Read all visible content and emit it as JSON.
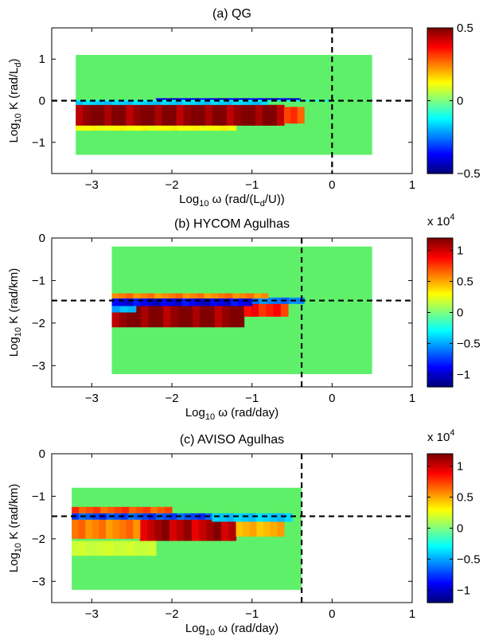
{
  "figure": {
    "colors": {
      "background": "#ffffff",
      "axes": "#000000",
      "field_zero": "#5ff06a",
      "colormap": [
        "#000080",
        "#0000ff",
        "#0080ff",
        "#00ffff",
        "#80ff80",
        "#ffff00",
        "#ff8000",
        "#ff0000",
        "#800000"
      ]
    }
  },
  "chart_data": [
    {
      "type": "heatmap",
      "title": "(a) QG",
      "xlabel": {
        "base": "Log",
        "sub": "10",
        "rest": " ω (rad/(L",
        "sub2": "d",
        "tail": "/U))"
      },
      "ylabel": {
        "base": "Log",
        "sub": "10",
        "rest": " K (rad/L",
        "sub2": "d",
        "tail": ")"
      },
      "xlim": [
        -3.5,
        1
      ],
      "ylim": [
        -1.75,
        1.75
      ],
      "xticks": [
        -3,
        -2,
        -1,
        0,
        1
      ],
      "xtick_labels": [
        "−3",
        "−2",
        "−1",
        "0",
        "1"
      ],
      "yticks": [
        -1,
        0,
        1
      ],
      "ytick_labels": [
        "−1",
        "0",
        "1"
      ],
      "data_extent": {
        "x": [
          -3.2,
          0.5
        ],
        "y": [
          -1.3,
          1.1
        ]
      },
      "vline_x": 0,
      "hline_y": 0,
      "colorbar": {
        "clim": [
          -0.5,
          0.5
        ],
        "ticks": [
          0.5,
          0,
          -0.5
        ],
        "tick_labels": [
          "0.5",
          "0",
          "−0.5"
        ],
        "multiplier": null
      },
      "features": [
        {
          "x": [
            -3.2,
            -0.6
          ],
          "y": [
            -0.6,
            -0.1
          ],
          "value": 1.0
        },
        {
          "x": [
            -0.6,
            -0.35
          ],
          "y": [
            -0.55,
            -0.15
          ],
          "value": 0.6
        },
        {
          "x": [
            -3.2,
            -1.2
          ],
          "y": [
            -0.72,
            -0.6
          ],
          "value": 0.25
        },
        {
          "x": [
            -3.2,
            -0.8
          ],
          "y": [
            -0.1,
            0.0
          ],
          "value": -0.35
        },
        {
          "x": [
            -2.2,
            -0.4
          ],
          "y": [
            0.0,
            0.06
          ],
          "value": -0.8
        },
        {
          "x": [
            -3.2,
            0.0
          ],
          "y": [
            -0.02,
            0.02
          ],
          "value": -0.25
        }
      ]
    },
    {
      "type": "heatmap",
      "title": "(b) HYCOM Agulhas",
      "xlabel": {
        "base": "Log",
        "sub": "10",
        "rest": " ω (rad/day)",
        "sub2": "",
        "tail": ""
      },
      "ylabel": {
        "base": "Log",
        "sub": "10",
        "rest": " K (rad/km)",
        "sub2": "",
        "tail": ""
      },
      "xlim": [
        -3.5,
        1
      ],
      "ylim": [
        -3.5,
        0
      ],
      "xticks": [
        -3,
        -2,
        -1,
        0,
        1
      ],
      "xtick_labels": [
        "−3",
        "−2",
        "−1",
        "0",
        "1"
      ],
      "yticks": [
        -3,
        -2,
        -1,
        0
      ],
      "ytick_labels": [
        "−3",
        "−2",
        "−1",
        "0"
      ],
      "data_extent": {
        "x": [
          -2.75,
          0.5
        ],
        "y": [
          -3.2,
          -0.2
        ]
      },
      "vline_x": -0.38,
      "hline_y": -1.47,
      "colorbar": {
        "clim": [
          -1.2,
          1.2
        ],
        "ticks": [
          1,
          0.5,
          0,
          -0.5,
          -1
        ],
        "tick_labels": [
          "1",
          "0.5",
          "0",
          "−0.5",
          "−1"
        ],
        "multiplier": {
          "base": "x 10",
          "exp": "4"
        }
      },
      "features": [
        {
          "x": [
            -2.75,
            -1.1
          ],
          "y": [
            -2.1,
            -1.6
          ],
          "value": 1.0
        },
        {
          "x": [
            -1.1,
            -0.55
          ],
          "y": [
            -1.85,
            -1.5
          ],
          "value": 0.7
        },
        {
          "x": [
            -2.75,
            -1.0
          ],
          "y": [
            -1.6,
            -1.42
          ],
          "value": -0.8
        },
        {
          "x": [
            -1.0,
            -0.35
          ],
          "y": [
            -1.55,
            -1.4
          ],
          "value": -0.5
        },
        {
          "x": [
            -2.75,
            -0.8
          ],
          "y": [
            -1.42,
            -1.3
          ],
          "value": 0.5
        },
        {
          "x": [
            -2.75,
            -2.45
          ],
          "y": [
            -1.75,
            -1.6
          ],
          "value": -0.4
        }
      ]
    },
    {
      "type": "heatmap",
      "title": "(c) AVISO Agulhas",
      "xlabel": {
        "base": "Log",
        "sub": "10",
        "rest": " ω (rad/day)",
        "sub2": "",
        "tail": ""
      },
      "ylabel": {
        "base": "Log",
        "sub": "10",
        "rest": " K (rad/km)",
        "sub2": "",
        "tail": ""
      },
      "xlim": [
        -3.5,
        1
      ],
      "ylim": [
        -3.5,
        0
      ],
      "xticks": [
        -3,
        -2,
        -1,
        0,
        1
      ],
      "xtick_labels": [
        "−3",
        "−2",
        "−1",
        "0",
        "1"
      ],
      "yticks": [
        -3,
        -2,
        -1,
        0
      ],
      "ytick_labels": [
        "−3",
        "−2",
        "−1",
        "0"
      ],
      "data_extent": {
        "x": [
          -3.25,
          -0.38
        ],
        "y": [
          -3.2,
          -0.8
        ]
      },
      "vline_x": -0.38,
      "hline_y": -1.47,
      "colorbar": {
        "clim": [
          -1.2,
          1.2
        ],
        "ticks": [
          1,
          0.5,
          0,
          -0.5,
          -1
        ],
        "tick_labels": [
          "1",
          "0.5",
          "0",
          "−0.5",
          "−1"
        ],
        "multiplier": {
          "base": "x 10",
          "exp": "4"
        }
      },
      "features": [
        {
          "x": [
            -2.4,
            -1.2
          ],
          "y": [
            -2.05,
            -1.55
          ],
          "value": 0.9
        },
        {
          "x": [
            -3.25,
            -2.4
          ],
          "y": [
            -2.0,
            -1.55
          ],
          "value": 0.5
        },
        {
          "x": [
            -1.2,
            -0.6
          ],
          "y": [
            -1.95,
            -1.55
          ],
          "value": 0.4
        },
        {
          "x": [
            -3.25,
            -1.5
          ],
          "y": [
            -1.55,
            -1.4
          ],
          "value": -0.6
        },
        {
          "x": [
            -1.5,
            -0.5
          ],
          "y": [
            -1.6,
            -1.4
          ],
          "value": -0.35
        },
        {
          "x": [
            -3.25,
            -2.0
          ],
          "y": [
            -1.4,
            -1.25
          ],
          "value": 0.6
        },
        {
          "x": [
            -3.25,
            -2.2
          ],
          "y": [
            -2.4,
            -2.05
          ],
          "value": 0.15
        }
      ]
    }
  ]
}
